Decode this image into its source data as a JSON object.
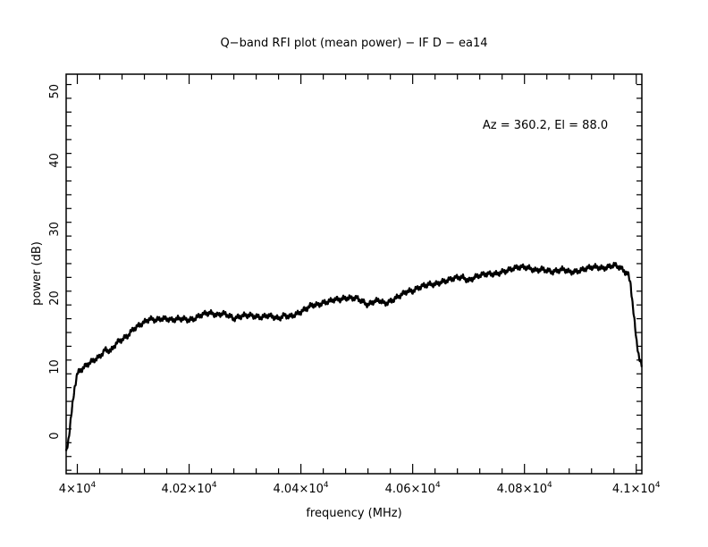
{
  "chart_data": {
    "type": "line",
    "title": "Q−band RFI plot (mean power) − IF D − ea14",
    "xlabel": "frequency (MHz)",
    "ylabel": "power (dB)",
    "annotation": "Az = 360.2, El = 88.0",
    "xlim": [
      39980,
      41010
    ],
    "ylim": [
      -5.5,
      52.5
    ],
    "x_ticks": [
      {
        "value": 40000,
        "mantissa": "4",
        "exponent": "4"
      },
      {
        "value": 40200,
        "mantissa": "4.02",
        "exponent": "4"
      },
      {
        "value": 40400,
        "mantissa": "4.04",
        "exponent": "4"
      },
      {
        "value": 40600,
        "mantissa": "4.06",
        "exponent": "4"
      },
      {
        "value": 40800,
        "mantissa": "4.08",
        "exponent": "4"
      },
      {
        "value": 41000,
        "mantissa": "4.1",
        "exponent": "4"
      }
    ],
    "y_ticks": [
      {
        "value": 0,
        "label": "0"
      },
      {
        "value": 10,
        "label": "10"
      },
      {
        "value": 20,
        "label": "20"
      },
      {
        "value": 30,
        "label": "30"
      },
      {
        "value": 40,
        "label": "40"
      },
      {
        "value": 50,
        "label": "50"
      }
    ],
    "series": [
      {
        "color": "#000000",
        "x": [
          39980,
          39985,
          39990,
          39995,
          40000,
          40005,
          40010,
          40020,
          40030,
          40040,
          40050,
          40060,
          40070,
          40080,
          40090,
          40100,
          40110,
          40120,
          40130,
          40140,
          40150,
          40160,
          40170,
          40180,
          40190,
          40200,
          40210,
          40220,
          40230,
          40240,
          40250,
          40260,
          40270,
          40280,
          40290,
          40300,
          40310,
          40320,
          40330,
          40340,
          40350,
          40360,
          40370,
          40380,
          40390,
          40400,
          40410,
          40420,
          40430,
          40440,
          40450,
          40460,
          40470,
          40480,
          40490,
          40500,
          40510,
          40520,
          40530,
          40540,
          40550,
          40560,
          40570,
          40580,
          40590,
          40600,
          40610,
          40620,
          40630,
          40640,
          40650,
          40660,
          40670,
          40680,
          40690,
          40700,
          40710,
          40720,
          40730,
          40740,
          40750,
          40760,
          40770,
          40780,
          40790,
          40800,
          40810,
          40820,
          40830,
          40840,
          40850,
          40860,
          40870,
          40880,
          40890,
          40900,
          40910,
          40920,
          40930,
          40940,
          40950,
          40960,
          40970,
          40980,
          40985,
          40990,
          40995,
          41000,
          41005,
          41010
        ],
        "values": [
          -2.5,
          0.0,
          3.5,
          7.0,
          9.0,
          9.5,
          9.8,
          10.5,
          11.0,
          11.5,
          12.5,
          12.3,
          13.5,
          14.0,
          14.5,
          15.5,
          16.0,
          16.5,
          17.0,
          16.8,
          17.0,
          17.0,
          16.8,
          17.0,
          17.0,
          16.8,
          17.0,
          17.5,
          17.8,
          17.8,
          17.5,
          17.8,
          17.5,
          17.0,
          17.3,
          17.5,
          17.5,
          17.3,
          17.2,
          17.5,
          17.3,
          17.0,
          17.5,
          17.3,
          17.6,
          18.0,
          18.5,
          19.0,
          19.0,
          19.3,
          19.5,
          19.8,
          19.8,
          20.0,
          20.0,
          20.0,
          19.5,
          19.0,
          19.5,
          19.7,
          19.2,
          19.5,
          20.0,
          20.5,
          21.0,
          21.0,
          21.5,
          21.8,
          22.0,
          22.0,
          22.3,
          22.5,
          22.8,
          23.0,
          23.0,
          22.5,
          23.0,
          23.3,
          23.5,
          23.5,
          23.5,
          23.8,
          24.0,
          24.3,
          24.5,
          24.5,
          24.3,
          24.0,
          24.2,
          24.0,
          23.8,
          24.0,
          24.2,
          23.8,
          23.8,
          24.0,
          24.3,
          24.5,
          24.5,
          24.3,
          24.5,
          24.8,
          24.5,
          23.8,
          23.5,
          22.0,
          18.0,
          14.0,
          11.5,
          10.0
        ]
      }
    ]
  }
}
